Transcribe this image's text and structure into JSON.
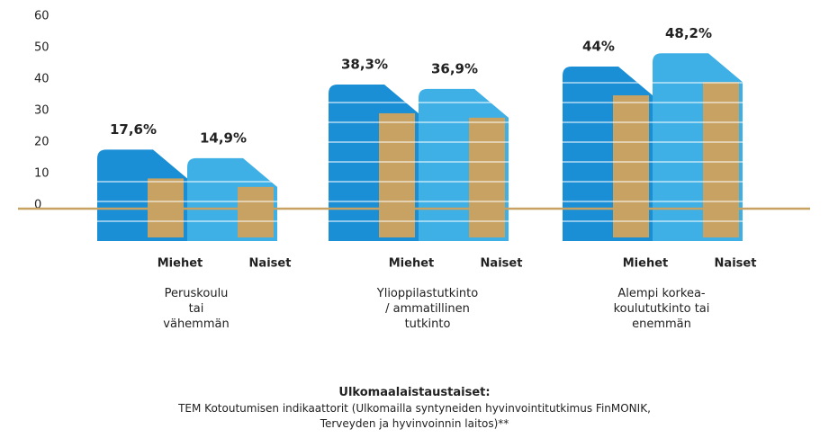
{
  "chart_data": {
    "type": "bar",
    "categories": [
      "Peruskoulu\ntai\nvähemmän",
      "Ylioppilastutkinto\n/ ammatillinen\ntutkinto",
      "Alempi korkea-\nkoulututkinto tai\nenemmän"
    ],
    "series": [
      {
        "name": "Miehet",
        "color": "#1b8fd6",
        "values": [
          17.6,
          38.3,
          44
        ],
        "value_labels": [
          "17,6%",
          "38,3%",
          "44%"
        ]
      },
      {
        "name": "Naiset",
        "color": "#3fb0e6",
        "values": [
          14.9,
          36.9,
          48.2
        ],
        "value_labels": [
          "14,9%",
          "36,9%",
          "48,2%"
        ]
      }
    ],
    "ylim": [
      0,
      60
    ],
    "yticks": [
      0,
      10,
      20,
      30,
      40,
      50,
      60
    ],
    "subtitle": "Ulkomaalaistaustaiset:",
    "source": "TEM Kotoutumisen indikaattorit (Ulkomailla syntyneiden hyvinvointitutkimus FinMONIK,\nTerveyden ja hyvinvoinnin laitos)**"
  }
}
